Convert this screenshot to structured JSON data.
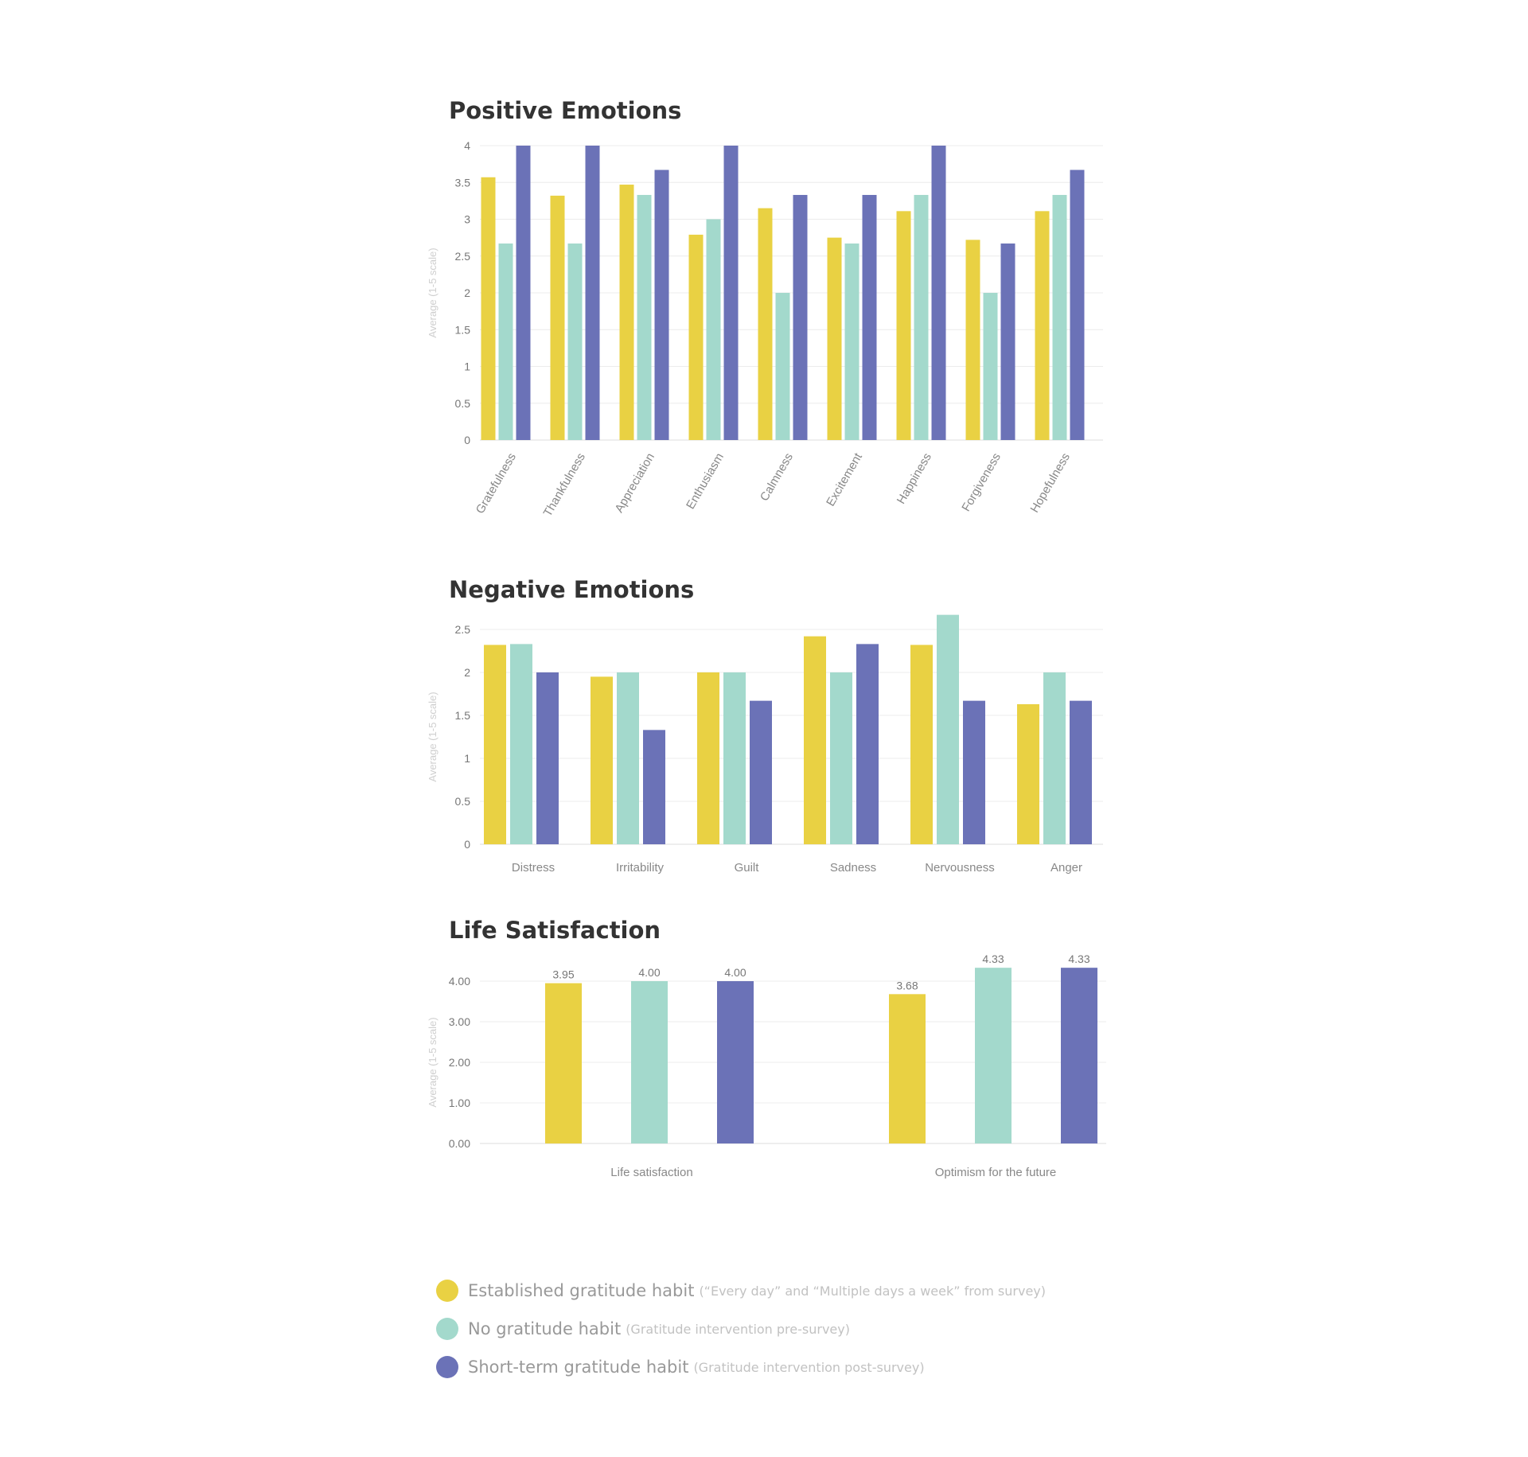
{
  "colors": {
    "established": "#E9D143",
    "none": "#A3D9CC",
    "short_term": "#6B72B7",
    "grid": "#ececec",
    "axis": "#dddddd"
  },
  "legend": [
    {
      "label": "Established gratitude habit",
      "note": "(“Every day” and “Multiple days a week” from survey)",
      "color": "#E9D143"
    },
    {
      "label": "No gratitude habit",
      "note": "(Gratitude intervention pre-survey)",
      "color": "#A3D9CC"
    },
    {
      "label": "Short-term gratitude habit",
      "note": "(Gratitude intervention post-survey)",
      "color": "#6B72B7"
    }
  ],
  "chart_data": [
    {
      "type": "bar",
      "title": "Positive Emotions",
      "ylabel": "Average (1-5 scale)",
      "ylim": [
        0,
        4
      ],
      "yticks": [
        "0",
        "0.5",
        "1",
        "1.5",
        "2",
        "2.5",
        "3",
        "3.5",
        "4"
      ],
      "grid": true,
      "categories": [
        "Gratefulness",
        "Thankfulness",
        "Appreciation",
        "Enthusiasm",
        "Calmness",
        "Excitement",
        "Happiness",
        "Forgiveness",
        "Hopefulness"
      ],
      "series": [
        {
          "name": "Established gratitude habit",
          "values": [
            3.57,
            3.32,
            3.47,
            2.79,
            3.15,
            2.75,
            3.11,
            2.72,
            3.11
          ]
        },
        {
          "name": "No gratitude habit",
          "values": [
            2.67,
            2.67,
            3.33,
            3.0,
            2.0,
            2.67,
            3.33,
            2.0,
            3.33
          ]
        },
        {
          "name": "Short-term gratitude habit",
          "values": [
            4.0,
            4.0,
            3.67,
            4.0,
            3.33,
            3.33,
            4.0,
            2.67,
            3.67
          ]
        }
      ]
    },
    {
      "type": "bar",
      "title": "Negative Emotions",
      "ylabel": "Average (1-5 scale)",
      "ylim": [
        0,
        2.5
      ],
      "yticks": [
        "0",
        "0.5",
        "1",
        "1.5",
        "2",
        "2.5"
      ],
      "grid": true,
      "categories": [
        "Distress",
        "Irritability",
        "Guilt",
        "Sadness",
        "Nervousness",
        "Anger"
      ],
      "series": [
        {
          "name": "Established gratitude habit",
          "values": [
            2.32,
            1.95,
            2.0,
            2.42,
            2.32,
            1.63
          ]
        },
        {
          "name": "No gratitude habit",
          "values": [
            2.33,
            2.0,
            2.0,
            2.0,
            2.67,
            2.0
          ]
        },
        {
          "name": "Short-term gratitude habit",
          "values": [
            2.0,
            1.33,
            1.67,
            2.33,
            1.67,
            1.67
          ]
        }
      ]
    },
    {
      "type": "bar",
      "title": "Life Satisfaction",
      "ylabel": "Average (1-5 scale)",
      "ylim": [
        0,
        4
      ],
      "yticks": [
        "0.00",
        "1.00",
        "2.00",
        "3.00",
        "4.00"
      ],
      "grid": true,
      "categories": [
        "Life satisfaction",
        "Optimism for the future"
      ],
      "series": [
        {
          "name": "Established gratitude habit",
          "values": [
            3.95,
            3.68
          ],
          "labels": [
            "3.95",
            "3.68"
          ]
        },
        {
          "name": "No gratitude habit",
          "values": [
            4.0,
            4.33
          ],
          "labels": [
            "4.00",
            "4.33"
          ]
        },
        {
          "name": "Short-term gratitude habit",
          "values": [
            4.0,
            4.33
          ],
          "labels": [
            "4.00",
            "4.33"
          ]
        }
      ]
    }
  ]
}
